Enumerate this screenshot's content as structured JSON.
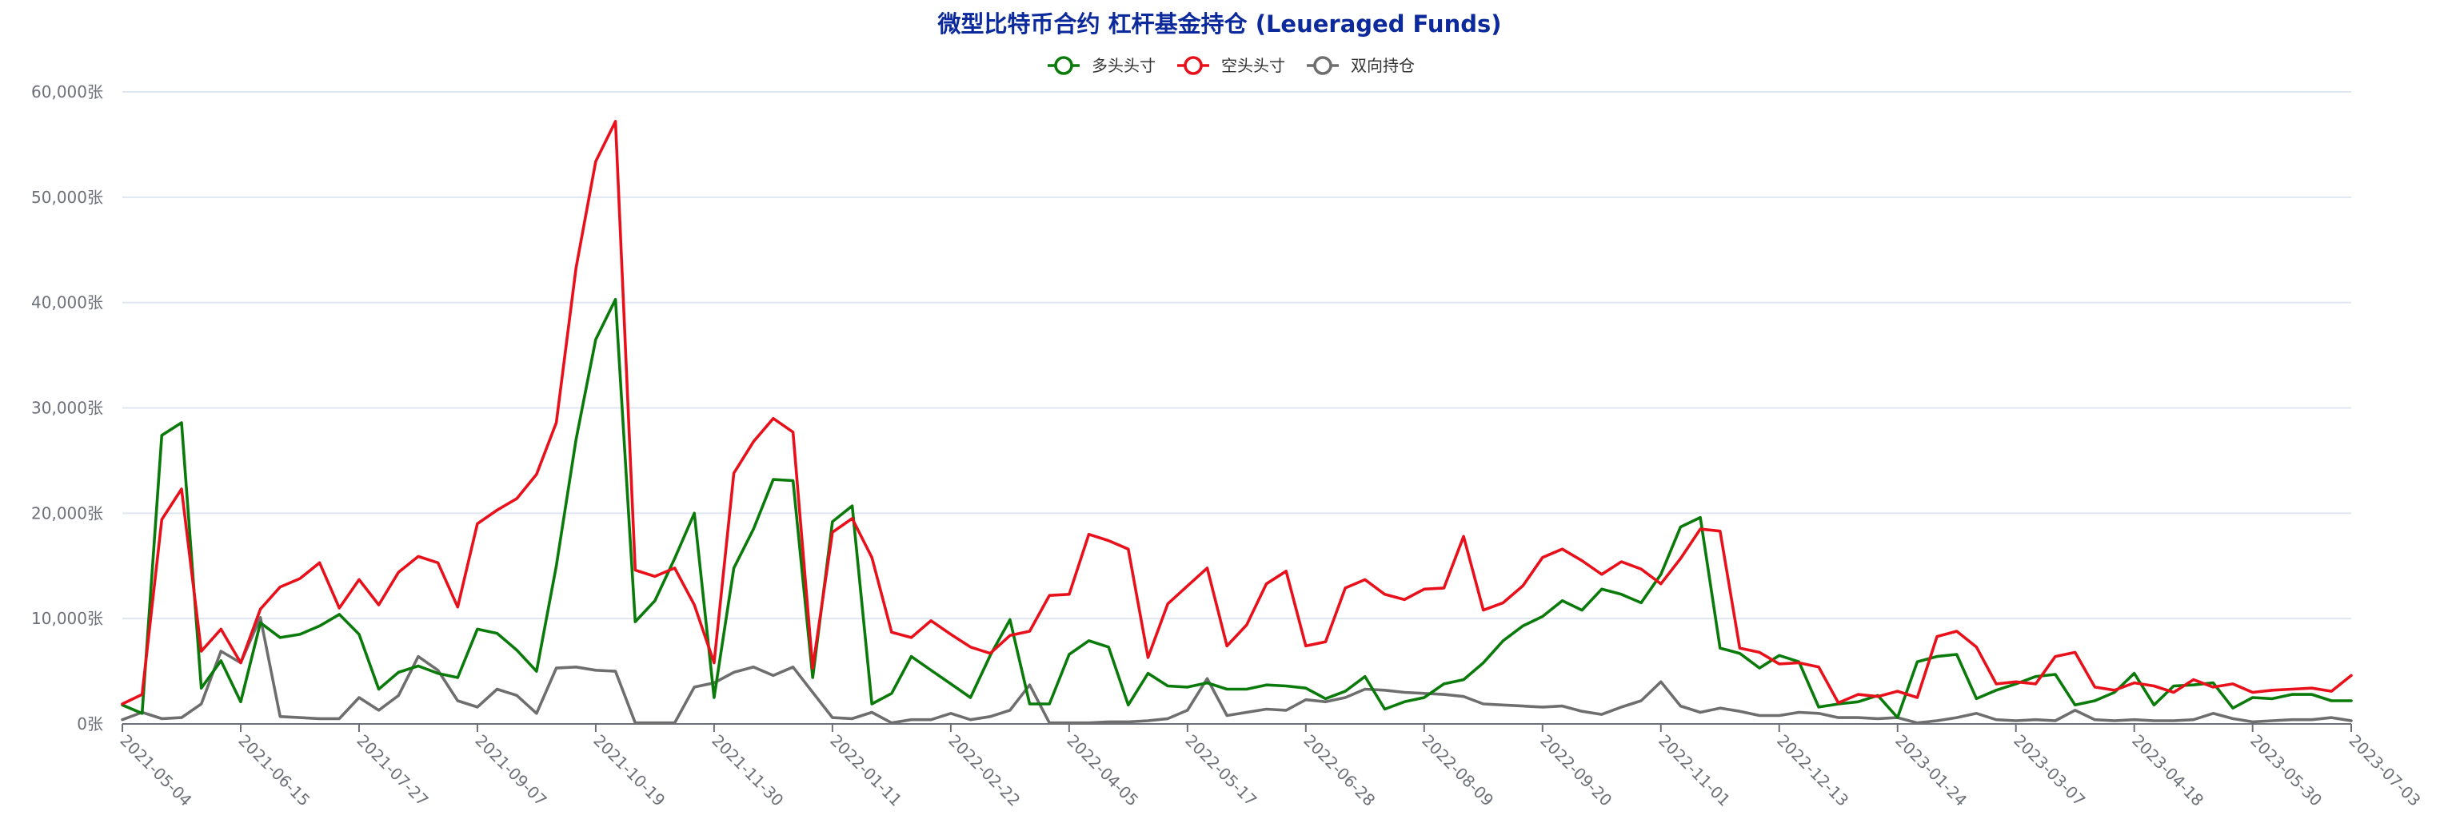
{
  "chart_data": {
    "type": "line",
    "title": "微型比特币合约 杠杆基金持仓 (Leueraged Funds)",
    "y_unit_suffix": "张",
    "ylim": [
      0,
      60000
    ],
    "yticks": [
      "0张",
      "10,000张",
      "20,000张",
      "30,000张",
      "40,000张",
      "50,000张",
      "60,000张"
    ],
    "ytick_values": [
      0,
      10000,
      20000,
      30000,
      40000,
      50000,
      60000
    ],
    "xtick_labels": [
      "2021-05-04",
      "2021-06-15",
      "2021-07-27",
      "2021-09-07",
      "2021-10-19",
      "2021-11-30",
      "2022-01-11",
      "2022-02-22",
      "2022-04-05",
      "2022-05-17",
      "2022-06-28",
      "2022-08-09",
      "2022-09-20",
      "2022-11-01",
      "2022-12-13",
      "2023-01-24",
      "2023-03-07",
      "2023-04-18",
      "2023-05-30",
      "2023-07-03"
    ],
    "xtick_indices": [
      0,
      6,
      12,
      18,
      24,
      30,
      36,
      42,
      48,
      54,
      60,
      66,
      72,
      78,
      84,
      90,
      96,
      102,
      108,
      113
    ],
    "grid": true,
    "legend_position": "top-center",
    "series": [
      {
        "name": "多头头寸",
        "color": "#0a7a0a",
        "values": [
          1800,
          1000,
          27400,
          28600,
          3400,
          6000,
          2100,
          9600,
          8200,
          8500,
          9300,
          10400,
          8500,
          3300,
          4900,
          5500,
          4800,
          4400,
          9000,
          8600,
          7000,
          5000,
          15000,
          27000,
          36500,
          40300,
          9700,
          11700,
          15700,
          20000,
          2500,
          14800,
          18500,
          23200,
          23100,
          4400,
          19200,
          20700,
          1900,
          2900,
          6400,
          5100,
          3800,
          2500,
          6500,
          9900,
          1900,
          1900,
          6600,
          7900,
          7300,
          1800,
          4800,
          3600,
          3500,
          3900,
          3300,
          3300,
          3700,
          3600,
          3400,
          2400,
          3100,
          4500,
          1400,
          2100,
          2500,
          3800,
          4200,
          5800,
          7900,
          9300,
          10200,
          11700,
          10800,
          12800,
          12300,
          11500,
          14200,
          18700,
          19600,
          7200,
          6700,
          5300,
          6500,
          5900,
          1600,
          1900,
          2100,
          2700,
          600,
          5900,
          6400,
          6600,
          2400,
          3200,
          3800,
          4500,
          4700,
          1800,
          2200,
          3000,
          4800,
          1800,
          3600,
          3700,
          3900,
          1500,
          2500,
          2400,
          2800,
          2800,
          2200,
          2200
        ]
      },
      {
        "name": "空头头寸",
        "color": "#e8101a",
        "values": [
          1900,
          2800,
          19400,
          22300,
          6900,
          9000,
          5800,
          10900,
          13000,
          13800,
          15300,
          11000,
          13700,
          11300,
          14400,
          15900,
          15300,
          11100,
          19000,
          20300,
          21400,
          23700,
          28600,
          43300,
          53400,
          57200,
          14600,
          14000,
          14800,
          11300,
          5800,
          23800,
          26800,
          29000,
          27700,
          5300,
          18200,
          19500,
          15800,
          8700,
          8200,
          9800,
          8500,
          7300,
          6700,
          8400,
          8800,
          12200,
          12300,
          18000,
          17400,
          16600,
          6300,
          11400,
          13100,
          14800,
          7400,
          9400,
          13300,
          14500,
          7400,
          7800,
          12900,
          13700,
          12300,
          11800,
          12800,
          12900,
          17800,
          10800,
          11500,
          13100,
          15800,
          16600,
          15500,
          14200,
          15400,
          14700,
          13300,
          15700,
          18500,
          18300,
          7200,
          6800,
          5700,
          5800,
          5400,
          2000,
          2800,
          2600,
          3100,
          2500,
          8300,
          8800,
          7300,
          3800,
          4000,
          3800,
          6400,
          6800,
          3500,
          3200,
          3900,
          3600,
          3000,
          4200,
          3500,
          3800,
          3000,
          3200,
          3300,
          3400,
          3100,
          4600
        ]
      },
      {
        "name": "双向持仓",
        "color": "#6e6e6e",
        "values": [
          400,
          1100,
          500,
          600,
          1900,
          6900,
          5800,
          10100,
          700,
          600,
          500,
          500,
          2500,
          1300,
          2700,
          6400,
          5100,
          2200,
          1600,
          3300,
          2700,
          1000,
          5300,
          5400,
          5100,
          5000,
          100,
          100,
          100,
          3500,
          3900,
          4900,
          5400,
          4600,
          5400,
          3000,
          600,
          500,
          1100,
          100,
          400,
          400,
          1000,
          400,
          700,
          1300,
          3700,
          100,
          100,
          100,
          200,
          200,
          300,
          500,
          1300,
          4300,
          800,
          1100,
          1400,
          1300,
          2300,
          2100,
          2500,
          3300,
          3200,
          3000,
          2900,
          2800,
          2600,
          1900,
          1800,
          1700,
          1600,
          1700,
          1200,
          900,
          1600,
          2200,
          4000,
          1700,
          1100,
          1500,
          1200,
          800,
          800,
          1100,
          1000,
          600,
          600,
          500,
          600,
          100,
          300,
          600,
          1000,
          400,
          300,
          400,
          300,
          1300,
          400,
          300,
          400,
          300,
          300,
          400,
          1000,
          500,
          200,
          300,
          400,
          400,
          600,
          300
        ]
      }
    ]
  }
}
